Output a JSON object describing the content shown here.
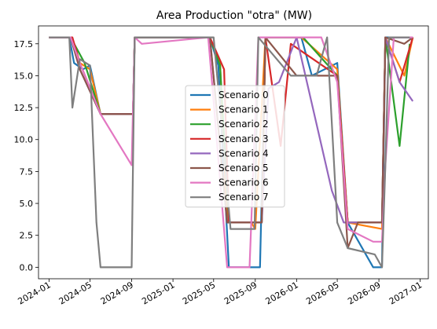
{
  "chart_data": {
    "type": "line",
    "title": "Area Production \"otra\" (MW)",
    "xlabel": "",
    "ylabel": "",
    "x_axis": "date",
    "xlim": [
      "2023-12-01",
      "2027-01-25"
    ],
    "ylim": [
      -0.9,
      18.9
    ],
    "x_ticks": [
      "2024-01",
      "2024-05",
      "2024-09",
      "2025-01",
      "2025-05",
      "2025-09",
      "2026-01",
      "2026-05",
      "2026-09",
      "2027-01"
    ],
    "y_ticks": [
      "0.0",
      "2.5",
      "5.0",
      "7.5",
      "10.0",
      "12.5",
      "15.0",
      "17.5"
    ],
    "y_tick_values": [
      0,
      2.5,
      5,
      7.5,
      10,
      12.5,
      15,
      17.5
    ],
    "grid": false,
    "legend_position": "center",
    "series": [
      {
        "name": "Scenario 0",
        "color": "#1f77b4",
        "points": [
          [
            "2024-01-01",
            18
          ],
          [
            "2024-03-01",
            18
          ],
          [
            "2024-03-15",
            16
          ],
          [
            "2024-04-10",
            15.5
          ],
          [
            "2024-05-01",
            15.8
          ],
          [
            "2024-06-01",
            12
          ],
          [
            "2024-09-05",
            12
          ],
          [
            "2024-09-10",
            18
          ],
          [
            "2025-04-20",
            18
          ],
          [
            "2025-05-15",
            15.8
          ],
          [
            "2025-06-15",
            0
          ],
          [
            "2025-09-15",
            0
          ],
          [
            "2025-10-01",
            18
          ],
          [
            "2026-01-15",
            18
          ],
          [
            "2026-02-15",
            15
          ],
          [
            "2026-05-01",
            16
          ],
          [
            "2026-06-01",
            3.5
          ],
          [
            "2026-08-15",
            0
          ],
          [
            "2026-09-10",
            0
          ],
          [
            "2026-09-20",
            18
          ],
          [
            "2026-12-10",
            18
          ]
        ]
      },
      {
        "name": "Scenario 1",
        "color": "#ff7f0e",
        "points": [
          [
            "2024-01-01",
            18
          ],
          [
            "2024-03-05",
            18
          ],
          [
            "2024-04-01",
            16
          ],
          [
            "2024-05-01",
            15.5
          ],
          [
            "2024-06-01",
            12
          ],
          [
            "2024-09-05",
            12
          ],
          [
            "2024-09-10",
            18
          ],
          [
            "2025-04-20",
            18
          ],
          [
            "2025-05-20",
            16
          ],
          [
            "2025-06-10",
            3.5
          ],
          [
            "2025-08-20",
            3.5
          ],
          [
            "2025-09-01",
            3
          ],
          [
            "2025-10-01",
            18
          ],
          [
            "2026-01-15",
            18
          ],
          [
            "2026-05-01",
            15.5
          ],
          [
            "2026-06-01",
            3.5
          ],
          [
            "2026-09-10",
            3
          ],
          [
            "2026-09-20",
            18
          ],
          [
            "2026-11-15",
            15
          ],
          [
            "2026-12-10",
            18
          ]
        ]
      },
      {
        "name": "Scenario 2",
        "color": "#2ca02c",
        "points": [
          [
            "2024-01-01",
            18
          ],
          [
            "2024-03-05",
            18
          ],
          [
            "2024-04-15",
            16
          ],
          [
            "2024-06-01",
            12
          ],
          [
            "2024-09-05",
            12
          ],
          [
            "2024-09-10",
            18
          ],
          [
            "2025-04-20",
            18
          ],
          [
            "2025-05-20",
            15.8
          ],
          [
            "2025-06-15",
            3.5
          ],
          [
            "2025-09-20",
            3.5
          ],
          [
            "2025-10-01",
            18
          ],
          [
            "2026-01-20",
            18
          ],
          [
            "2026-05-01",
            15
          ],
          [
            "2026-06-01",
            3.5
          ],
          [
            "2026-09-10",
            3.5
          ],
          [
            "2026-09-20",
            18
          ],
          [
            "2026-11-01",
            9.5
          ],
          [
            "2026-12-01",
            17.5
          ]
        ]
      },
      {
        "name": "Scenario 3",
        "color": "#d62728",
        "points": [
          [
            "2024-01-01",
            18
          ],
          [
            "2024-03-10",
            18
          ],
          [
            "2024-04-01",
            16
          ],
          [
            "2024-06-01",
            12
          ],
          [
            "2024-09-05",
            12
          ],
          [
            "2024-09-10",
            18
          ],
          [
            "2025-04-20",
            18
          ],
          [
            "2025-06-01",
            15.5
          ],
          [
            "2025-06-15",
            3.5
          ],
          [
            "2025-09-20",
            3.5
          ],
          [
            "2025-10-01",
            18
          ],
          [
            "2025-11-15",
            9.5
          ],
          [
            "2025-12-15",
            17.5
          ],
          [
            "2026-05-01",
            15
          ],
          [
            "2026-06-01",
            3.5
          ],
          [
            "2026-09-10",
            3.5
          ],
          [
            "2026-09-20",
            18
          ],
          [
            "2026-11-01",
            14.5
          ],
          [
            "2026-12-10",
            18
          ]
        ]
      },
      {
        "name": "Scenario 4",
        "color": "#9467bd",
        "points": [
          [
            "2024-01-01",
            18
          ],
          [
            "2024-03-05",
            18
          ],
          [
            "2024-04-01",
            15.5
          ],
          [
            "2024-06-01",
            12
          ],
          [
            "2024-09-05",
            12
          ],
          [
            "2024-09-10",
            18
          ],
          [
            "2025-04-20",
            18
          ],
          [
            "2025-06-10",
            3.5
          ],
          [
            "2025-09-20",
            3.5
          ],
          [
            "2025-10-10",
            14
          ],
          [
            "2025-11-10",
            14.5
          ],
          [
            "2026-01-01",
            18
          ],
          [
            "2026-04-15",
            6
          ],
          [
            "2026-05-20",
            3.5
          ],
          [
            "2026-09-10",
            3.5
          ],
          [
            "2026-09-20",
            18
          ],
          [
            "2026-11-01",
            14.5
          ],
          [
            "2026-12-10",
            13
          ]
        ]
      },
      {
        "name": "Scenario 5",
        "color": "#8c564b",
        "points": [
          [
            "2024-01-01",
            18
          ],
          [
            "2024-03-05",
            18
          ],
          [
            "2024-04-01",
            15.5
          ],
          [
            "2024-06-01",
            12
          ],
          [
            "2024-09-05",
            12
          ],
          [
            "2024-09-10",
            18
          ],
          [
            "2025-04-20",
            18
          ],
          [
            "2025-06-10",
            3.5
          ],
          [
            "2025-09-20",
            3.5
          ],
          [
            "2025-10-01",
            18
          ],
          [
            "2026-01-01",
            15
          ],
          [
            "2026-05-01",
            15
          ],
          [
            "2026-06-01",
            1.5
          ],
          [
            "2026-07-01",
            3.5
          ],
          [
            "2026-09-10",
            3.5
          ],
          [
            "2026-09-20",
            18
          ],
          [
            "2026-11-15",
            17.5
          ],
          [
            "2026-12-10",
            18
          ]
        ]
      },
      {
        "name": "Scenario 6",
        "color": "#e377c2",
        "points": [
          [
            "2024-01-01",
            18
          ],
          [
            "2024-03-05",
            18
          ],
          [
            "2024-04-01",
            16
          ],
          [
            "2024-06-01",
            12
          ],
          [
            "2024-09-01",
            8
          ],
          [
            "2024-09-10",
            18
          ],
          [
            "2024-10-01",
            17.5
          ],
          [
            "2025-04-15",
            18
          ],
          [
            "2025-05-01",
            13
          ],
          [
            "2025-06-10",
            0
          ],
          [
            "2025-08-15",
            0
          ],
          [
            "2025-09-10",
            18
          ],
          [
            "2026-01-01",
            18
          ],
          [
            "2026-03-15",
            18
          ],
          [
            "2026-05-01",
            14.5
          ],
          [
            "2026-06-01",
            3
          ],
          [
            "2026-08-15",
            2
          ],
          [
            "2026-09-10",
            2
          ],
          [
            "2026-09-20",
            8
          ],
          [
            "2026-10-15",
            18
          ],
          [
            "2026-12-10",
            18
          ]
        ]
      },
      {
        "name": "Scenario 7",
        "color": "#7f7f7f",
        "points": [
          [
            "2024-01-01",
            18
          ],
          [
            "2024-03-01",
            18
          ],
          [
            "2024-03-10",
            12.5
          ],
          [
            "2024-04-01",
            16.3
          ],
          [
            "2024-05-01",
            15.8
          ],
          [
            "2024-05-20",
            3.5
          ],
          [
            "2024-06-01",
            0
          ],
          [
            "2024-09-01",
            0
          ],
          [
            "2024-09-05",
            8
          ],
          [
            "2024-09-10",
            18
          ],
          [
            "2025-05-01",
            18
          ],
          [
            "2025-05-20",
            12.5
          ],
          [
            "2025-06-20",
            3
          ],
          [
            "2025-08-30",
            3
          ],
          [
            "2025-09-10",
            18
          ],
          [
            "2025-12-15",
            15
          ],
          [
            "2026-03-01",
            15
          ],
          [
            "2026-04-01",
            18
          ],
          [
            "2026-05-01",
            3.5
          ],
          [
            "2026-06-01",
            1.5
          ],
          [
            "2026-08-20",
            1
          ],
          [
            "2026-09-10",
            0
          ],
          [
            "2026-09-20",
            8
          ],
          [
            "2026-10-01",
            18
          ],
          [
            "2026-12-01",
            18
          ]
        ]
      }
    ]
  }
}
